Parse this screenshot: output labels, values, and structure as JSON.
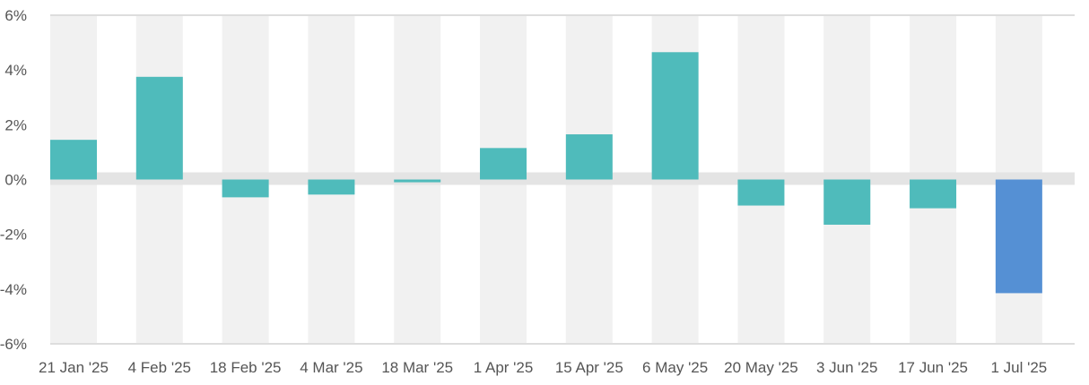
{
  "chart_data": {
    "type": "bar",
    "title": "",
    "xlabel": "",
    "ylabel": "",
    "categories": [
      "21 Jan '25",
      "4 Feb '25",
      "18 Feb '25",
      "4 Mar '25",
      "18 Mar '25",
      "1 Apr '25",
      "15 Apr '25",
      "6 May '25",
      "20 May '25",
      "3 Jun '25",
      "17 Jun '25",
      "1 Jul '25"
    ],
    "values": [
      1.45,
      3.75,
      -0.65,
      -0.55,
      -0.1,
      1.15,
      1.65,
      4.65,
      -0.95,
      -1.65,
      -1.05,
      -4.15
    ],
    "ylim": [
      -6,
      6
    ],
    "yticks": [
      -6,
      -4,
      -2,
      0,
      2,
      4,
      6
    ],
    "ytick_labels": [
      "-6%",
      "-4%",
      "-2%",
      "0%",
      "2%",
      "4%",
      "6%"
    ],
    "highlight_index": 11,
    "grid": false,
    "legend": "none",
    "colors": {
      "bar": "#4fbbbb",
      "highlight_bar": "#5590d4",
      "column_band": "#f1f1f1",
      "zero_band": "#e4e4e4",
      "axis": "#dddddd",
      "text": "#555555"
    }
  }
}
